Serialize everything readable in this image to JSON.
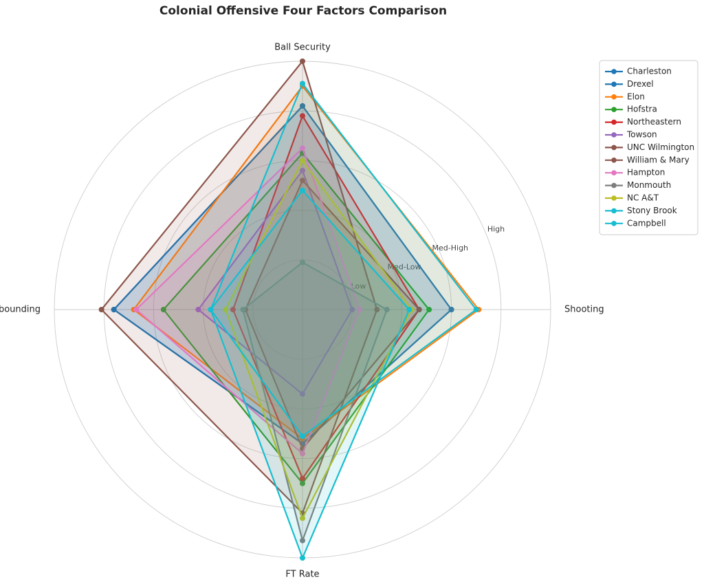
{
  "chart_data": {
    "type": "radar",
    "title": "Colonial Offensive Four Factors Comparison",
    "axes": [
      "Shooting",
      "Ball Security",
      "Off Rebounding",
      "FT Rate"
    ],
    "rlim": [
      0,
      5
    ],
    "ring_labels": [
      {
        "value": 1,
        "label": "Low"
      },
      {
        "value": 2,
        "label": "Med-Low"
      },
      {
        "value": 3,
        "label": "Med-High"
      },
      {
        "value": 4,
        "label": "High"
      }
    ],
    "grid": true,
    "legend_position": "top-right",
    "series": [
      {
        "name": "Charleston",
        "color": "#1f77b4",
        "values": [
          3.0,
          4.1,
          3.8,
          2.7
        ]
      },
      {
        "name": "Drexel",
        "color": "#1f77b4",
        "values": [
          3.0,
          4.1,
          3.8,
          2.7
        ]
      },
      {
        "name": "Elon",
        "color": "#ff7f0e",
        "values": [
          3.55,
          4.5,
          3.4,
          2.6
        ]
      },
      {
        "name": "Hofstra",
        "color": "#2ca02c",
        "values": [
          2.55,
          3.15,
          2.8,
          3.5
        ]
      },
      {
        "name": "Northeastern",
        "color": "#d62728",
        "values": [
          2.35,
          3.9,
          1.4,
          3.4
        ]
      },
      {
        "name": "Towson",
        "color": "#9467bd",
        "values": [
          1.0,
          2.8,
          2.1,
          1.7
        ]
      },
      {
        "name": "UNC Wilmington",
        "color": "#8c564b",
        "values": [
          2.35,
          2.6,
          1.15,
          2.8
        ]
      },
      {
        "name": "William & Mary",
        "color": "#8c564b",
        "values": [
          1.5,
          5.0,
          4.05,
          4.1
        ]
      },
      {
        "name": "Hampton",
        "color": "#e377c2",
        "values": [
          1.15,
          3.25,
          3.35,
          2.9
        ]
      },
      {
        "name": "Monmouth",
        "color": "#7f7f7f",
        "values": [
          1.7,
          0.95,
          1.2,
          4.65
        ]
      },
      {
        "name": "NC A&T",
        "color": "#bcbd22",
        "values": [
          2.2,
          3.0,
          1.55,
          4.2
        ]
      },
      {
        "name": "Stony Brook",
        "color": "#17becf",
        "values": [
          3.5,
          4.55,
          1.85,
          2.55
        ]
      },
      {
        "name": "Campbell",
        "color": "#17becf",
        "values": [
          2.15,
          2.4,
          1.85,
          5.0
        ]
      }
    ]
  }
}
